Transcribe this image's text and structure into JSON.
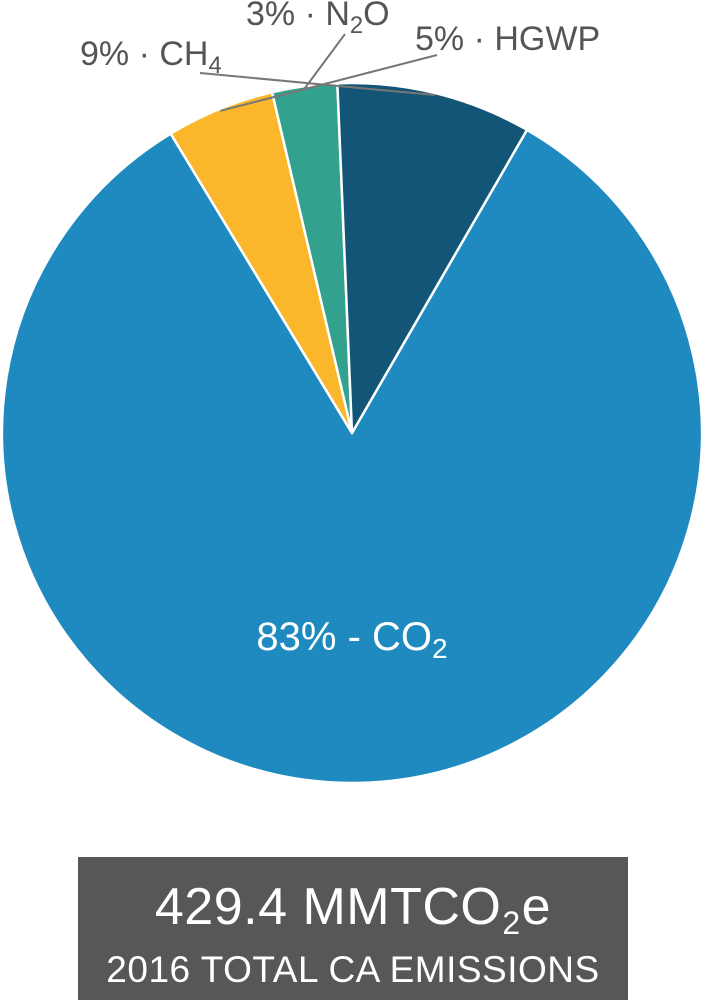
{
  "chart_data": {
    "type": "pie",
    "slices": [
      {
        "name": "CO",
        "sub": "2",
        "separator": " - ",
        "value": 83,
        "label": "83%",
        "color": "#1f8ac0",
        "label_position": "inside"
      },
      {
        "name": "HGWP",
        "sub": "",
        "separator": " · ",
        "value": 5,
        "label": "5%",
        "color": "#fab72b",
        "label_position": "outside"
      },
      {
        "name": "N",
        "sub": "2",
        "suffix": "O",
        "separator": " · ",
        "value": 3,
        "label": "3%",
        "color": "#32a28e",
        "label_position": "outside"
      },
      {
        "name": "CH",
        "sub": "4",
        "separator": " · ",
        "value": 9,
        "label": "9%",
        "color": "#125577",
        "label_position": "outside"
      }
    ]
  },
  "total": {
    "value_prefix": "429.4 MMTCO",
    "value_sub": "2",
    "value_suffix": "e",
    "caption": "2016 TOTAL CA EMISSIONS"
  }
}
